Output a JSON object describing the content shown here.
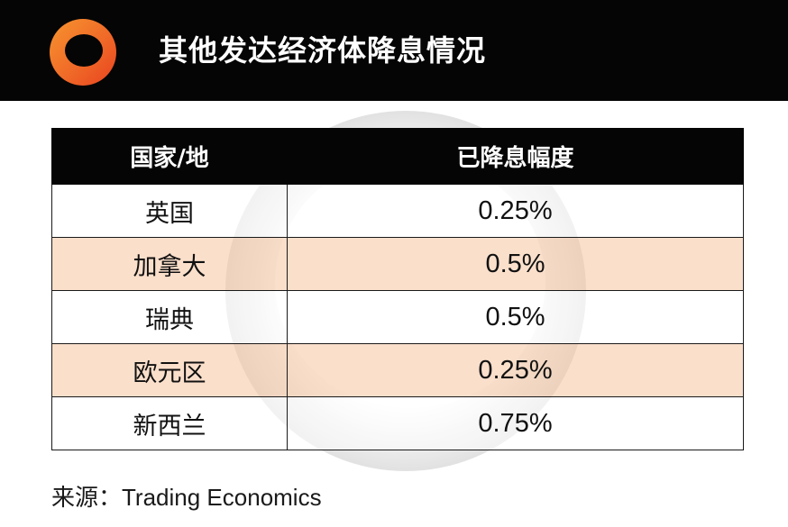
{
  "header": {
    "title": "其他发达经济体降息情况",
    "logo_icon": "ring-logo-icon",
    "logo_colors": [
      "#e8431f",
      "#f7942f"
    ]
  },
  "chart_data": {
    "type": "table",
    "columns": [
      "国家/地",
      "已降息幅度"
    ],
    "rows": [
      {
        "country": "英国",
        "cut": "0.25%"
      },
      {
        "country": "加拿大",
        "cut": "0.5%"
      },
      {
        "country": "瑞典",
        "cut": "0.5%"
      },
      {
        "country": "欧元区",
        "cut": "0.25%"
      },
      {
        "country": "新西兰",
        "cut": "0.75%"
      }
    ],
    "colors": {
      "header_bg": "#050505",
      "row_alt": "#fbe1cf",
      "row": "#ffffff"
    }
  },
  "footer": {
    "source_label": "来源：",
    "source_name": "Trading Economics"
  }
}
